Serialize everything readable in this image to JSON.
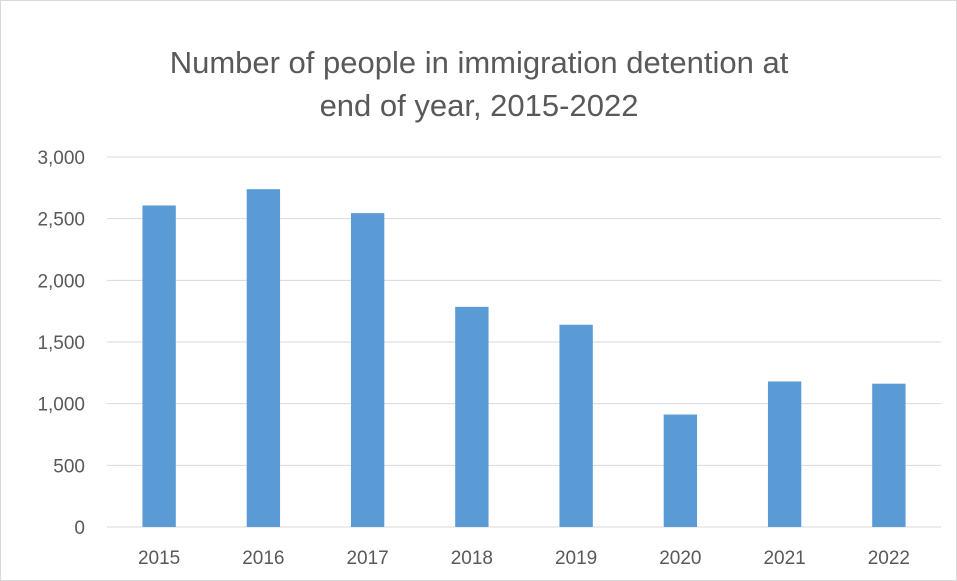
{
  "chart_data": {
    "type": "bar",
    "title_lines": [
      "Number of people in immigration detention at",
      "end of year, 2015-2022"
    ],
    "xlabel": "",
    "ylabel": "",
    "categories": [
      "2015",
      "2016",
      "2017",
      "2018",
      "2019",
      "2020",
      "2021",
      "2022"
    ],
    "values": [
      2607,
      2739,
      2545,
      1785,
      1640,
      912,
      1180,
      1162
    ],
    "ylim": [
      0,
      3000
    ],
    "yticks": [
      0,
      500,
      1000,
      1500,
      2000,
      2500,
      3000
    ],
    "ytick_labels": [
      "0",
      "500",
      "1,000",
      "1,500",
      "2,000",
      "2,500",
      "3,000"
    ],
    "grid": true,
    "legend": "none",
    "bar_color": "#5b9bd5"
  }
}
